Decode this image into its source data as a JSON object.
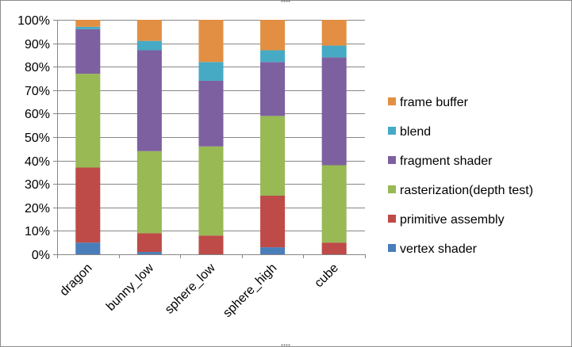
{
  "chart_data": {
    "type": "bar",
    "stacked": true,
    "percent_stacked": true,
    "categories": [
      "dragon",
      "bunny_low",
      "sphere_low",
      "sphere_high",
      "cube"
    ],
    "ylim": [
      0,
      100
    ],
    "yticks": [
      "0%",
      "10%",
      "20%",
      "30%",
      "40%",
      "50%",
      "60%",
      "70%",
      "80%",
      "90%",
      "100%"
    ],
    "grid": true,
    "legend_position": "right",
    "series": [
      {
        "name": "vertex shader",
        "color": "#4a7ebb",
        "values": [
          5,
          1,
          0,
          3,
          0
        ]
      },
      {
        "name": "primitive assembly",
        "color": "#be4b48",
        "values": [
          32,
          8,
          8,
          22,
          5
        ]
      },
      {
        "name": "rasterization(depth test)",
        "color": "#98b954",
        "values": [
          40,
          35,
          38,
          34,
          33
        ]
      },
      {
        "name": "fragment shader",
        "color": "#7d60a0",
        "values": [
          19,
          43,
          28,
          23,
          46
        ]
      },
      {
        "name": "blend",
        "color": "#46aac5",
        "values": [
          1,
          4,
          8,
          5,
          5
        ]
      },
      {
        "name": "frame buffer",
        "color": "#e28f43",
        "values": [
          3,
          9,
          18,
          13,
          11
        ]
      }
    ]
  }
}
